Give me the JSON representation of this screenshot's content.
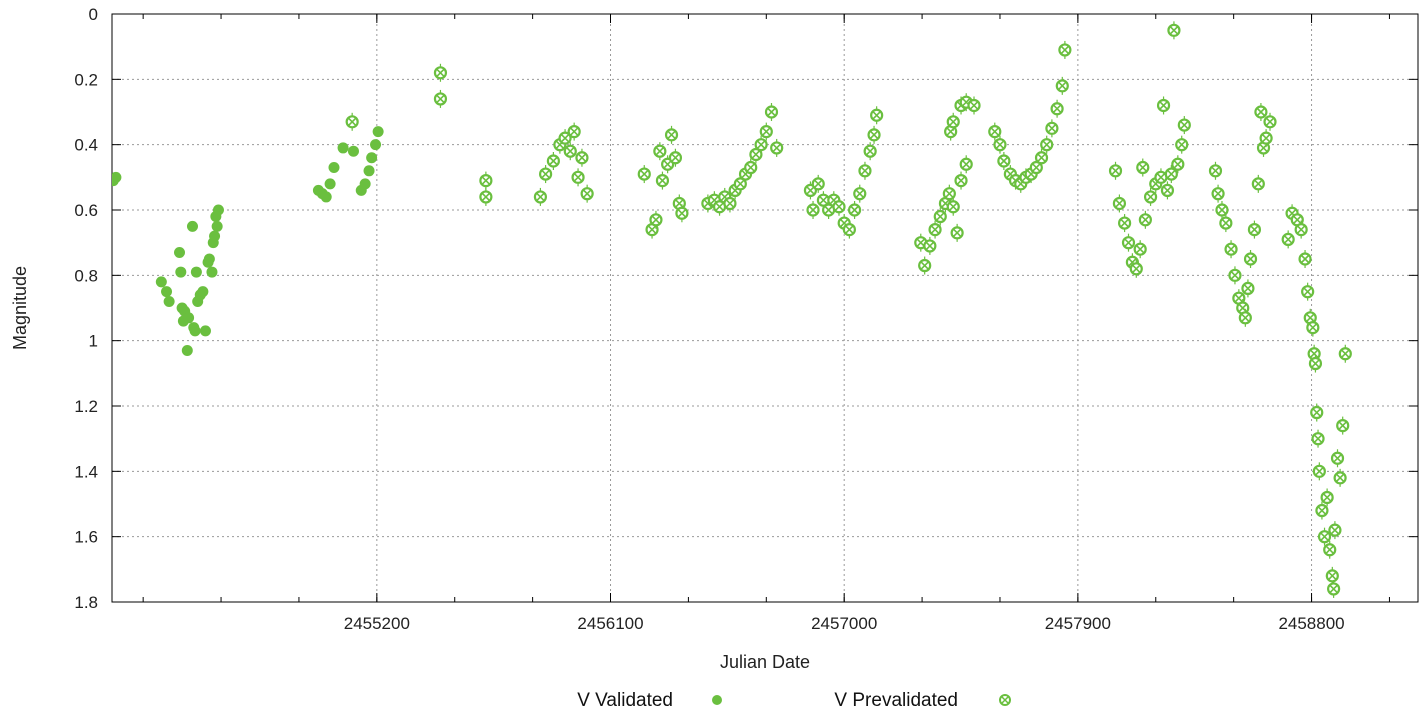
{
  "chart_data": {
    "type": "scatter",
    "title": "",
    "xlabel": "Julian Date",
    "ylabel": "Magnitude",
    "xlim": [
      2454180,
      2459210
    ],
    "ylim": [
      0,
      1.8
    ],
    "y_inverted": true,
    "grid": true,
    "legend": "bottom",
    "xticks": [
      2455200,
      2456100,
      2457000,
      2457900,
      2458800
    ],
    "xtick_labels": [
      "2455200",
      "2456100",
      "2457000",
      "2457900",
      "2458800"
    ],
    "yticks": [
      0,
      0.2,
      0.4,
      0.6,
      0.8,
      1,
      1.2,
      1.4,
      1.6,
      1.8
    ],
    "ytick_labels": [
      "0",
      "0.2",
      "0.4",
      "0.6",
      "0.8",
      "1",
      "1.2",
      "1.4",
      "1.6",
      "1.8"
    ],
    "series": [
      {
        "name": "V Validated",
        "marker": "filled-circle",
        "color": "#6abf3f",
        "points": [
          [
            2454185,
            0.51
          ],
          [
            2454195,
            0.5
          ],
          [
            2454370,
            0.82
          ],
          [
            2454390,
            0.85
          ],
          [
            2454400,
            0.88
          ],
          [
            2454440,
            0.73
          ],
          [
            2454445,
            0.79
          ],
          [
            2454450,
            0.9
          ],
          [
            2454455,
            0.94
          ],
          [
            2454460,
            0.91
          ],
          [
            2454470,
            1.03
          ],
          [
            2454475,
            0.93
          ],
          [
            2454490,
            0.65
          ],
          [
            2454495,
            0.96
          ],
          [
            2454500,
            0.97
          ],
          [
            2454505,
            0.79
          ],
          [
            2454510,
            0.88
          ],
          [
            2454520,
            0.86
          ],
          [
            2454530,
            0.85
          ],
          [
            2454540,
            0.97
          ],
          [
            2454550,
            0.76
          ],
          [
            2454555,
            0.75
          ],
          [
            2454565,
            0.79
          ],
          [
            2454570,
            0.7
          ],
          [
            2454575,
            0.68
          ],
          [
            2454580,
            0.62
          ],
          [
            2454585,
            0.65
          ],
          [
            2454590,
            0.6
          ],
          [
            2454975,
            0.54
          ],
          [
            2454990,
            0.55
          ],
          [
            2455005,
            0.56
          ],
          [
            2455020,
            0.52
          ],
          [
            2455035,
            0.47
          ],
          [
            2455070,
            0.41
          ],
          [
            2455110,
            0.42
          ],
          [
            2455140,
            0.54
          ],
          [
            2455155,
            0.52
          ],
          [
            2455170,
            0.48
          ],
          [
            2455180,
            0.44
          ],
          [
            2455195,
            0.4
          ],
          [
            2455205,
            0.36
          ]
        ]
      },
      {
        "name": "V Prevalidated",
        "marker": "open-circle-cross",
        "color": "#6abf3f",
        "points": [
          [
            2455105,
            0.33
          ],
          [
            2455445,
            0.18
          ],
          [
            2455445,
            0.26
          ],
          [
            2455620,
            0.51
          ],
          [
            2455620,
            0.56
          ],
          [
            2455830,
            0.56
          ],
          [
            2455850,
            0.49
          ],
          [
            2455880,
            0.45
          ],
          [
            2455905,
            0.4
          ],
          [
            2455925,
            0.38
          ],
          [
            2455945,
            0.42
          ],
          [
            2455960,
            0.36
          ],
          [
            2455975,
            0.5
          ],
          [
            2455990,
            0.44
          ],
          [
            2456010,
            0.55
          ],
          [
            2456230,
            0.49
          ],
          [
            2456260,
            0.66
          ],
          [
            2456275,
            0.63
          ],
          [
            2456290,
            0.42
          ],
          [
            2456300,
            0.51
          ],
          [
            2456320,
            0.46
          ],
          [
            2456335,
            0.37
          ],
          [
            2456350,
            0.44
          ],
          [
            2456365,
            0.58
          ],
          [
            2456375,
            0.61
          ],
          [
            2456475,
            0.58
          ],
          [
            2456500,
            0.57
          ],
          [
            2456520,
            0.59
          ],
          [
            2456540,
            0.56
          ],
          [
            2456560,
            0.58
          ],
          [
            2456580,
            0.54
          ],
          [
            2456600,
            0.52
          ],
          [
            2456620,
            0.49
          ],
          [
            2456640,
            0.47
          ],
          [
            2456660,
            0.43
          ],
          [
            2456680,
            0.4
          ],
          [
            2456700,
            0.36
          ],
          [
            2456720,
            0.3
          ],
          [
            2456740,
            0.41
          ],
          [
            2456870,
            0.54
          ],
          [
            2456880,
            0.6
          ],
          [
            2456900,
            0.52
          ],
          [
            2456920,
            0.57
          ],
          [
            2456940,
            0.6
          ],
          [
            2456960,
            0.57
          ],
          [
            2456980,
            0.59
          ],
          [
            2457000,
            0.64
          ],
          [
            2457020,
            0.66
          ],
          [
            2457040,
            0.6
          ],
          [
            2457060,
            0.55
          ],
          [
            2457080,
            0.48
          ],
          [
            2457100,
            0.42
          ],
          [
            2457115,
            0.37
          ],
          [
            2457125,
            0.31
          ],
          [
            2457295,
            0.7
          ],
          [
            2457310,
            0.77
          ],
          [
            2457330,
            0.71
          ],
          [
            2457350,
            0.66
          ],
          [
            2457370,
            0.62
          ],
          [
            2457390,
            0.58
          ],
          [
            2457405,
            0.55
          ],
          [
            2457420,
            0.59
          ],
          [
            2457435,
            0.67
          ],
          [
            2457450,
            0.51
          ],
          [
            2457470,
            0.46
          ],
          [
            2457410,
            0.36
          ],
          [
            2457420,
            0.33
          ],
          [
            2457450,
            0.28
          ],
          [
            2457470,
            0.27
          ],
          [
            2457500,
            0.28
          ],
          [
            2457580,
            0.36
          ],
          [
            2457600,
            0.4
          ],
          [
            2457615,
            0.45
          ],
          [
            2457640,
            0.49
          ],
          [
            2457660,
            0.51
          ],
          [
            2457680,
            0.52
          ],
          [
            2457700,
            0.5
          ],
          [
            2457720,
            0.49
          ],
          [
            2457740,
            0.47
          ],
          [
            2457760,
            0.44
          ],
          [
            2457780,
            0.4
          ],
          [
            2457800,
            0.35
          ],
          [
            2457820,
            0.29
          ],
          [
            2457840,
            0.22
          ],
          [
            2457850,
            0.11
          ],
          [
            2458045,
            0.48
          ],
          [
            2458060,
            0.58
          ],
          [
            2458080,
            0.64
          ],
          [
            2458095,
            0.7
          ],
          [
            2458110,
            0.76
          ],
          [
            2458125,
            0.78
          ],
          [
            2458140,
            0.72
          ],
          [
            2458150,
            0.47
          ],
          [
            2458160,
            0.63
          ],
          [
            2458180,
            0.56
          ],
          [
            2458200,
            0.52
          ],
          [
            2458220,
            0.5
          ],
          [
            2458230,
            0.28
          ],
          [
            2458245,
            0.54
          ],
          [
            2458260,
            0.49
          ],
          [
            2458270,
            0.05
          ],
          [
            2458285,
            0.46
          ],
          [
            2458300,
            0.4
          ],
          [
            2458310,
            0.34
          ],
          [
            2458430,
            0.48
          ],
          [
            2458440,
            0.55
          ],
          [
            2458455,
            0.6
          ],
          [
            2458470,
            0.64
          ],
          [
            2458490,
            0.72
          ],
          [
            2458505,
            0.8
          ],
          [
            2458520,
            0.87
          ],
          [
            2458535,
            0.9
          ],
          [
            2458545,
            0.93
          ],
          [
            2458555,
            0.84
          ],
          [
            2458565,
            0.75
          ],
          [
            2458580,
            0.66
          ],
          [
            2458595,
            0.52
          ],
          [
            2458605,
            0.3
          ],
          [
            2458615,
            0.41
          ],
          [
            2458625,
            0.38
          ],
          [
            2458640,
            0.33
          ],
          [
            2458710,
            0.69
          ],
          [
            2458725,
            0.61
          ],
          [
            2458745,
            0.63
          ],
          [
            2458760,
            0.66
          ],
          [
            2458775,
            0.75
          ],
          [
            2458785,
            0.85
          ],
          [
            2458795,
            0.93
          ],
          [
            2458805,
            0.96
          ],
          [
            2458810,
            1.04
          ],
          [
            2458815,
            1.07
          ],
          [
            2458820,
            1.22
          ],
          [
            2458825,
            1.3
          ],
          [
            2458830,
            1.4
          ],
          [
            2458840,
            1.52
          ],
          [
            2458850,
            1.6
          ],
          [
            2458860,
            1.48
          ],
          [
            2458870,
            1.64
          ],
          [
            2458880,
            1.72
          ],
          [
            2458885,
            1.76
          ],
          [
            2458890,
            1.58
          ],
          [
            2458900,
            1.36
          ],
          [
            2458910,
            1.42
          ],
          [
            2458920,
            1.26
          ],
          [
            2458930,
            1.04
          ]
        ]
      }
    ]
  }
}
